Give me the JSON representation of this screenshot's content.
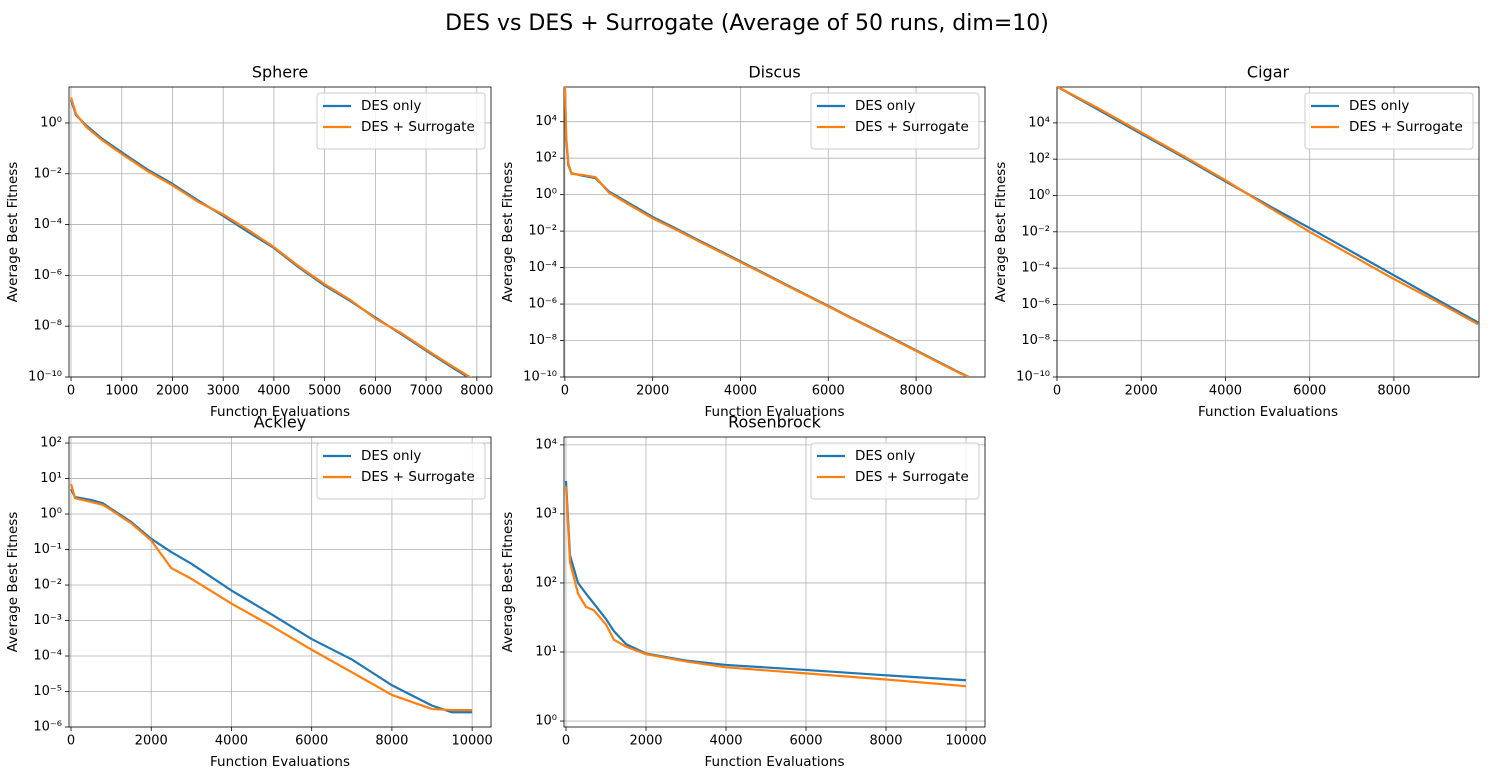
{
  "title": "DES vs DES + Surrogate (Average of 50 runs, dim=10)",
  "chart_data": [
    {
      "type": "line",
      "title": "Sphere",
      "xlabel": "Function Evaluations",
      "ylabel": "Average Best Fitness",
      "log_y": true,
      "grid": true,
      "legend_loc": "upper right",
      "x": [
        0,
        100,
        300,
        600,
        1000,
        1500,
        2000,
        2500,
        3000,
        3500,
        4000,
        4500,
        5000,
        5500,
        6000,
        6500,
        7000,
        7500,
        7900
      ],
      "series": [
        {
          "name": "DES only",
          "color": "#1f77b4",
          "values": [
            8,
            2,
            0.8,
            0.25,
            0.07,
            0.015,
            0.004,
            0.0009,
            0.00022,
            5e-05,
            1.2e-05,
            2e-06,
            4e-07,
            1e-07,
            2.2e-08,
            5e-09,
            1.1e-09,
            2.5e-10,
            8e-11
          ]
        },
        {
          "name": "DES + Surrogate",
          "color": "#ff7f0e",
          "values": [
            10,
            2.2,
            0.7,
            0.22,
            0.06,
            0.013,
            0.0035,
            0.0008,
            0.00025,
            6e-05,
            1.3e-05,
            2.2e-06,
            4.5e-07,
            1.1e-07,
            2e-08,
            5.5e-09,
            1.2e-09,
            2.8e-10,
            9e-11
          ]
        }
      ],
      "xlim": [
        -40,
        8280
      ],
      "ylim": [
        1e-10,
        26
      ],
      "xticks": [
        0,
        1000,
        2000,
        3000,
        4000,
        5000,
        6000,
        7000,
        8000
      ],
      "yticks": [
        {
          "value": 1e-10,
          "label": "10⁻¹⁰"
        },
        {
          "value": 1e-08,
          "label": "10⁻⁸"
        },
        {
          "value": 1e-06,
          "label": "10⁻⁶"
        },
        {
          "value": 0.0001,
          "label": "10⁻⁴"
        },
        {
          "value": 0.01,
          "label": "10⁻²"
        },
        {
          "value": 1,
          "label": "10⁰"
        }
      ]
    },
    {
      "type": "line",
      "title": "Discus",
      "xlabel": "Function Evaluations",
      "ylabel": "Average Best Fitness",
      "log_y": true,
      "grid": true,
      "legend_loc": "upper right",
      "x": [
        0,
        30,
        80,
        150,
        400,
        700,
        1000,
        1500,
        2000,
        2500,
        3000,
        3500,
        4000,
        4500,
        5000,
        5500,
        6000,
        6500,
        7000,
        7500,
        8000,
        8500,
        9000,
        9200
      ],
      "series": [
        {
          "name": "DES only",
          "color": "#1f77b4",
          "values": [
            1000000,
            1000,
            40,
            15,
            11,
            8,
            1.5,
            0.3,
            0.06,
            0.015,
            0.0036,
            0.0009,
            0.00022,
            5.4e-05,
            1.3e-05,
            3.2e-06,
            8e-07,
            1.9e-07,
            4.8e-08,
            1.2e-08,
            2.9e-09,
            7e-10,
            1.7e-10,
            1e-10
          ]
        },
        {
          "name": "DES + Surrogate",
          "color": "#ff7f0e",
          "values": [
            1000000,
            1500,
            50,
            14,
            12,
            9,
            1.3,
            0.25,
            0.05,
            0.013,
            0.0032,
            0.0008,
            0.0002,
            5e-05,
            1.2e-05,
            3e-06,
            7.5e-07,
            1.8e-07,
            4.5e-08,
            1.1e-08,
            2.7e-09,
            6.5e-10,
            1.6e-10,
            1e-10
          ]
        }
      ],
      "xlim": [
        -20,
        9570
      ],
      "ylim": [
        1e-10,
        800000
      ],
      "xticks": [
        0,
        2000,
        4000,
        6000,
        8000
      ],
      "yticks": [
        {
          "value": 1e-10,
          "label": "10⁻¹⁰"
        },
        {
          "value": 1e-08,
          "label": "10⁻⁸"
        },
        {
          "value": 1e-06,
          "label": "10⁻⁶"
        },
        {
          "value": 0.0001,
          "label": "10⁻⁴"
        },
        {
          "value": 0.01,
          "label": "10⁻²"
        },
        {
          "value": 1,
          "label": "10⁰"
        },
        {
          "value": 100,
          "label": "10²"
        },
        {
          "value": 10000,
          "label": "10⁴"
        }
      ]
    },
    {
      "type": "line",
      "title": "Cigar",
      "xlabel": "Function Evaluations",
      "ylabel": "Average Best Fitness",
      "log_y": true,
      "grid": true,
      "legend_loc": "upper right",
      "x": [
        0,
        1000,
        2000,
        3000,
        4000,
        5000,
        6000,
        7000,
        8000,
        9000,
        10000
      ],
      "series": [
        {
          "name": "DES only",
          "color": "#1f77b4",
          "values": [
            1000000,
            50000,
            2500,
            130,
            6,
            0.3,
            0.016,
            0.0008,
            4e-05,
            2e-06,
            1e-07
          ]
        },
        {
          "name": "DES + Surrogate",
          "color": "#ff7f0e",
          "values": [
            1000000,
            60000,
            3000,
            150,
            7,
            0.25,
            0.01,
            0.0005,
            2.5e-05,
            1.5e-06,
            8e-08
          ]
        }
      ],
      "xlim": [
        0,
        10020
      ],
      "ylim": [
        1e-10,
        950000
      ],
      "xticks": [
        0,
        2000,
        4000,
        6000,
        8000
      ],
      "yticks": [
        {
          "value": 1e-10,
          "label": "10⁻¹⁰"
        },
        {
          "value": 1e-08,
          "label": "10⁻⁸"
        },
        {
          "value": 1e-06,
          "label": "10⁻⁶"
        },
        {
          "value": 0.0001,
          "label": "10⁻⁴"
        },
        {
          "value": 0.01,
          "label": "10⁻²"
        },
        {
          "value": 1,
          "label": "10⁰"
        },
        {
          "value": 100,
          "label": "10²"
        },
        {
          "value": 10000,
          "label": "10⁴"
        }
      ]
    },
    {
      "type": "line",
      "title": "Ackley",
      "xlabel": "Function Evaluations",
      "ylabel": "Average Best Fitness",
      "log_y": true,
      "grid": true,
      "legend_loc": "upper right",
      "x": [
        0,
        100,
        500,
        800,
        1000,
        1500,
        2000,
        2500,
        3000,
        4000,
        5000,
        6000,
        7000,
        8000,
        9000,
        9500,
        10000
      ],
      "series": [
        {
          "name": "DES only",
          "color": "#1f77b4",
          "values": [
            5,
            3,
            2.5,
            2,
            1.4,
            0.6,
            0.2,
            0.085,
            0.04,
            0.007,
            0.0015,
            0.0003,
            8e-05,
            1.5e-05,
            4e-06,
            2.6e-06,
            2.6e-06
          ]
        },
        {
          "name": "DES + Surrogate",
          "color": "#ff7f0e",
          "values": [
            7,
            2.8,
            2.2,
            1.8,
            1.3,
            0.55,
            0.18,
            0.03,
            0.015,
            0.003,
            0.0007,
            0.00015,
            3.5e-05,
            8e-06,
            3.2e-06,
            3e-06,
            3e-06
          ]
        }
      ],
      "xlim": [
        -50,
        10470
      ],
      "ylim": [
        1e-06,
        148
      ],
      "xticks": [
        0,
        2000,
        4000,
        6000,
        8000,
        10000
      ],
      "yticks": [
        {
          "value": 1e-06,
          "label": "10⁻⁶"
        },
        {
          "value": 1e-05,
          "label": "10⁻⁵"
        },
        {
          "value": 0.0001,
          "label": "10⁻⁴"
        },
        {
          "value": 0.001,
          "label": "10⁻³"
        },
        {
          "value": 0.01,
          "label": "10⁻²"
        },
        {
          "value": 0.1,
          "label": "10⁻¹"
        },
        {
          "value": 1,
          "label": "10⁰"
        },
        {
          "value": 10,
          "label": "10¹"
        },
        {
          "value": 100,
          "label": "10²"
        }
      ]
    },
    {
      "type": "line",
      "title": "Rosenbrock",
      "xlabel": "Function Evaluations",
      "ylabel": "Average Best Fitness",
      "log_y": true,
      "grid": true,
      "legend_loc": "upper right",
      "x": [
        0,
        100,
        300,
        500,
        700,
        1000,
        1200,
        1500,
        2000,
        3000,
        4000,
        6000,
        8000,
        10000
      ],
      "series": [
        {
          "name": "DES only",
          "color": "#1f77b4",
          "values": [
            3000,
            250,
            100,
            70,
            50,
            30,
            20,
            13,
            9.5,
            7.5,
            6.5,
            5.5,
            4.6,
            3.9
          ]
        },
        {
          "name": "DES + Surrogate",
          "color": "#ff7f0e",
          "values": [
            2500,
            200,
            70,
            45,
            40,
            25,
            15,
            12,
            9.3,
            7.3,
            6,
            4.9,
            4,
            3.2
          ]
        }
      ],
      "xlim": [
        -50,
        10475
      ],
      "ylim": [
        0.82,
        13000
      ],
      "xticks": [
        0,
        2000,
        4000,
        6000,
        8000,
        10000
      ],
      "yticks": [
        {
          "value": 1,
          "label": "10⁰"
        },
        {
          "value": 10,
          "label": "10¹"
        },
        {
          "value": 100,
          "label": "10²"
        },
        {
          "value": 1000,
          "label": "10³"
        },
        {
          "value": 10000,
          "label": "10⁴"
        }
      ]
    }
  ]
}
